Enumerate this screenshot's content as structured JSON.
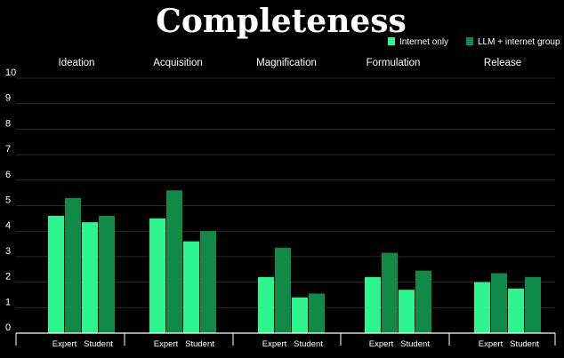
{
  "chart_data": {
    "type": "bar",
    "title": "Completeness",
    "stages": [
      "Ideation",
      "Acquisition",
      "Magnification",
      "Formulation",
      "Release"
    ],
    "groups": [
      "Expert",
      "Student"
    ],
    "ylim": [
      0,
      10
    ],
    "yticks": [
      0,
      1,
      2,
      3,
      4,
      5,
      6,
      7,
      8,
      9,
      10
    ],
    "grid": true,
    "legend_position": "top-right",
    "series": [
      {
        "name": "Internet only",
        "color": "#2ef58f",
        "values": {
          "Expert": [
            4.6,
            4.5,
            2.2,
            2.2,
            2.0
          ],
          "Student": [
            4.35,
            3.6,
            1.4,
            1.7,
            1.75
          ]
        }
      },
      {
        "name": "LLM + internet group",
        "color": "#118a47",
        "values": {
          "Expert": [
            5.3,
            5.6,
            3.35,
            3.15,
            2.35
          ],
          "Student": [
            4.6,
            4.0,
            1.55,
            2.45,
            2.2
          ]
        }
      }
    ]
  }
}
